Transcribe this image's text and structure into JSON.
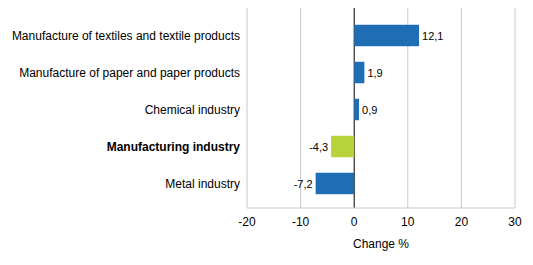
{
  "chart_data": {
    "type": "bar",
    "orientation": "horizontal",
    "categories": [
      "Manufacture of textiles and textile products",
      "Manufacture of paper and paper products",
      "Chemical industry",
      "Manufacturing industry",
      "Metal industry"
    ],
    "values": [
      12.1,
      1.9,
      0.9,
      -4.3,
      -7.2
    ],
    "value_labels": [
      "12,1",
      "1,9",
      "0,9",
      "-4,3",
      "-7,2"
    ],
    "colors": [
      "#1f6db4",
      "#1f6db4",
      "#1f6db4",
      "#b8d33a",
      "#1f6db4"
    ],
    "xlim": [
      -20,
      30
    ],
    "xticks": [
      -20,
      -10,
      0,
      10,
      20,
      30
    ],
    "xlabel": "Change %",
    "grid": true,
    "data_labels": true
  }
}
